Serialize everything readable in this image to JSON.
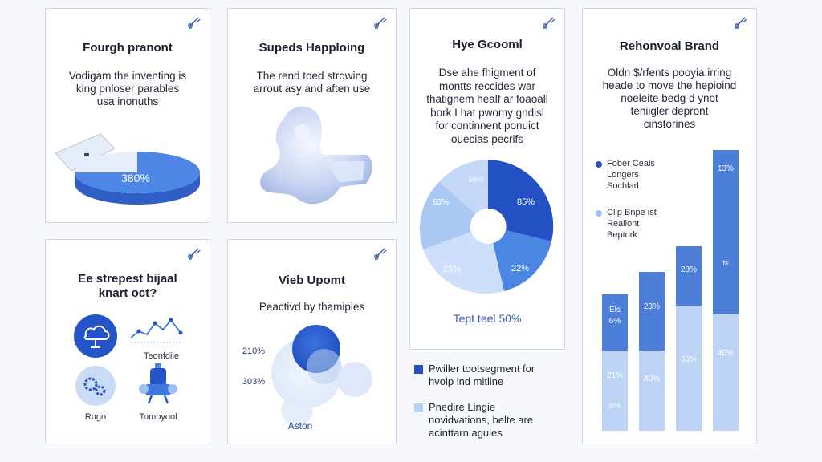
{
  "colors": {
    "accent_dark": "#1f4fbf",
    "accent_mid": "#3f78dd",
    "accent_light": "#9dc0f2",
    "accent_pale": "#c8dbf7",
    "border": "#c9d6ee"
  },
  "cards": {
    "c1": {
      "title": "Fourgh pranont",
      "body": [
        "Vodigam the inventing is",
        "king pnloser parables",
        "usa inonuths"
      ],
      "pie_label": "380%",
      "icon": "tool-icon"
    },
    "c2": {
      "title": "Supeds Happloing",
      "body": [
        "The rend toed strowing",
        "arrout asy and aften use"
      ],
      "icon": "tool-icon"
    },
    "c3": {
      "title": "Hye Gcooml",
      "body": [
        "Dse ahe fhigment of",
        "montts reccides war",
        "thatignem healf ar foaoall",
        "bork I hat pwomy gndisl",
        "for continnent ponuict",
        "ouecias pecrifs"
      ],
      "donut_labels": [
        "85%",
        "22%",
        "25%",
        "63%",
        "65%"
      ],
      "footer": "Tept teel 50%",
      "icon": "tool-icon"
    },
    "c4": {
      "title": "Rehonvoal Brand",
      "body": [
        "Oldn $/rfents pooyia irring",
        "heade to move the hepioind",
        "noeleite bedg d ynot",
        "teniigler depront",
        "cinstorines"
      ],
      "legend": [
        {
          "lines": [
            "Fober Ceals",
            "Longers",
            "Sochlarl"
          ]
        },
        {
          "lines": [
            "Clip Bnpe ist",
            "Reallont",
            "Beptork"
          ]
        }
      ],
      "bar_top_labels": [
        "Els",
        "23%",
        "28%",
        "13%"
      ],
      "bar_top_sub": [
        "6%",
        "",
        "",
        "fs"
      ],
      "bar_bottom_labels": [
        "21%",
        "40%",
        "60%",
        "40%"
      ],
      "bar_bottom_sub": [
        "6%",
        "",
        "",
        ""
      ],
      "icon": "tool-icon"
    },
    "c5": {
      "title_lines": [
        "Ee strepest bijaal",
        "knart oct?"
      ],
      "items": [
        "Teonfdile",
        "Rugo",
        "Tombyool"
      ],
      "icon": "tool-icon"
    },
    "c6": {
      "title": "Vieb Upomt",
      "subtitle": "Peactivd by thamipies",
      "labels": [
        "210%",
        "303%",
        "Aston"
      ],
      "icon": "tool-icon"
    }
  },
  "bottom_legend": [
    {
      "lines": [
        "Pwiller tootsegment for",
        "hvoip ind mitline"
      ]
    },
    {
      "lines": [
        "Pnedire Lingie",
        "novidvations, belte are",
        "acinttarn agules"
      ]
    }
  ]
}
